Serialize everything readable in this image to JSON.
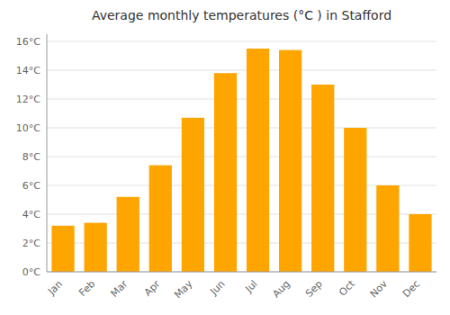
{
  "chart_data": {
    "type": "bar",
    "title": "Average monthly temperatures (°C ) in Stafford",
    "categories": [
      "Jan",
      "Feb",
      "Mar",
      "Apr",
      "May",
      "Jun",
      "Jul",
      "Aug",
      "Sep",
      "Oct",
      "Nov",
      "Dec"
    ],
    "values": [
      3.2,
      3.4,
      5.2,
      7.4,
      10.7,
      13.8,
      15.5,
      15.4,
      13.0,
      10.0,
      6.0,
      4.0
    ],
    "color": "#FFA500",
    "ylim": [
      0,
      16.5
    ],
    "yticks": [
      {
        "value": 0,
        "label": "0°C"
      },
      {
        "value": 2,
        "label": "2°C"
      },
      {
        "value": 4,
        "label": "4°C"
      },
      {
        "value": 6,
        "label": "6°C"
      },
      {
        "value": 8,
        "label": "8°C"
      },
      {
        "value": 10,
        "label": "10°C"
      },
      {
        "value": 12,
        "label": "12°C"
      },
      {
        "value": 14,
        "label": "14°C"
      },
      {
        "value": 16,
        "label": "16°C"
      }
    ],
    "grid": true
  }
}
